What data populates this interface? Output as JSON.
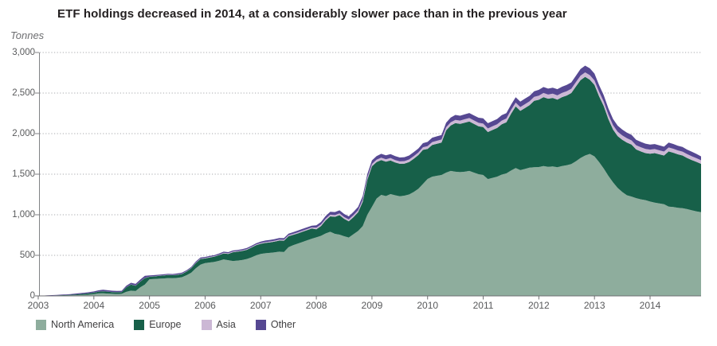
{
  "title": "ETF holdings decreased in 2014, at a considerably slower pace than in the previous year",
  "y_axis": {
    "unit": "Tonnes",
    "tick_labels": [
      "3,000",
      "2,500",
      "2,000",
      "1,500",
      "1,000",
      "500",
      "0"
    ],
    "tick_values": [
      3000,
      2500,
      2000,
      1500,
      1000,
      500,
      0
    ]
  },
  "x_axis": {
    "year_labels": [
      "2003",
      "2004",
      "2005",
      "2006",
      "2007",
      "2008",
      "2009",
      "2010",
      "2011",
      "2012",
      "2013",
      "2014"
    ]
  },
  "legend": {
    "items": [
      {
        "label": "North America",
        "color": "#8ead9d"
      },
      {
        "label": "Europe",
        "color": "#176049"
      },
      {
        "label": "Asia",
        "color": "#ccb8d5"
      },
      {
        "label": "Other",
        "color": "#564892"
      }
    ]
  },
  "colors": {
    "gridline": "#a7a9ac",
    "axis": "#808285",
    "baseline": "#6d6e71",
    "title_text": "#231f20",
    "axis_text": "#58595b"
  },
  "chart_data": {
    "type": "area",
    "stacked": true,
    "title": "ETF holdings decreased in 2014, at a considerably slower pace than in the previous year",
    "ylabel": "Tonnes",
    "ylim": [
      0,
      3000
    ],
    "yticks": [
      0,
      500,
      1000,
      1500,
      2000,
      2500,
      3000
    ],
    "x_start_year": 2003,
    "x_end_year": 2014,
    "frequency": "monthly",
    "grid": "dotted-horizontal",
    "legend_position": "bottom",
    "series": [
      {
        "name": "North America",
        "color": "#8ead9d",
        "values": [
          1,
          1,
          2,
          3,
          4,
          5,
          6,
          7,
          9,
          11,
          13,
          16,
          22,
          30,
          32,
          28,
          25,
          24,
          25,
          50,
          65,
          60,
          105,
          140,
          205,
          208,
          212,
          215,
          220,
          218,
          222,
          230,
          255,
          285,
          340,
          385,
          405,
          412,
          420,
          432,
          450,
          440,
          430,
          435,
          442,
          455,
          475,
          500,
          517,
          525,
          530,
          537,
          545,
          540,
          600,
          625,
          645,
          665,
          685,
          705,
          722,
          740,
          770,
          790,
          765,
          755,
          735,
          720,
          760,
          800,
          860,
          1000,
          1098,
          1200,
          1245,
          1230,
          1255,
          1240,
          1228,
          1235,
          1250,
          1280,
          1320,
          1380,
          1441,
          1470,
          1480,
          1490,
          1520,
          1540,
          1530,
          1525,
          1530,
          1540,
          1520,
          1500,
          1490,
          1440,
          1455,
          1470,
          1495,
          1510,
          1545,
          1575,
          1550,
          1565,
          1580,
          1585,
          1588,
          1600,
          1590,
          1595,
          1585,
          1600,
          1610,
          1625,
          1660,
          1700,
          1730,
          1750,
          1720,
          1650,
          1570,
          1480,
          1400,
          1330,
          1280,
          1240,
          1225,
          1205,
          1190,
          1180,
          1163,
          1150,
          1140,
          1130,
          1100,
          1095,
          1085,
          1080,
          1070,
          1055,
          1042,
          1032
        ]
      },
      {
        "name": "Europe",
        "color": "#176049",
        "values": [
          0,
          0,
          1,
          2,
          3,
          4,
          5,
          7,
          9,
          12,
          14,
          17,
          18,
          22,
          25,
          24,
          22,
          21,
          22,
          55,
          75,
          65,
          70,
          80,
          30,
          32,
          34,
          36,
          38,
          37,
          38,
          40,
          45,
          55,
          65,
          70,
          57,
          62,
          64,
          70,
          74,
          78,
          108,
          110,
          112,
          113,
          120,
          125,
          125,
          128,
          130,
          132,
          136,
          140,
          135,
          128,
          125,
          125,
          125,
          125,
          100,
          120,
          160,
          190,
          210,
          240,
          215,
          200,
          210,
          230,
          300,
          430,
          500,
          450,
          430,
          425,
          415,
          405,
          400,
          395,
          400,
          410,
          415,
          420,
          370,
          390,
          395,
          400,
          520,
          560,
          600,
          595,
          605,
          610,
          600,
          590,
          590,
          580,
          590,
          600,
          620,
          630,
          700,
          760,
          730,
          750,
          770,
          820,
          830,
          850,
          840,
          845,
          835,
          850,
          860,
          875,
          920,
          960,
          970,
          915,
          880,
          810,
          770,
          700,
          650,
          640,
          645,
          650,
          640,
          600,
          590,
          580,
          590,
          610,
          605,
          600,
          680,
          670,
          660,
          650,
          630,
          620,
          610,
          595
        ]
      },
      {
        "name": "Asia",
        "color": "#ccb8d5",
        "values": [
          0,
          0,
          0,
          0,
          0,
          0,
          0,
          0,
          0,
          0,
          0,
          1,
          1,
          1,
          1,
          1,
          1,
          1,
          1,
          2,
          2,
          2,
          2,
          2,
          3,
          3,
          3,
          3,
          3,
          3,
          4,
          4,
          4,
          4,
          5,
          5,
          6,
          6,
          6,
          6,
          7,
          7,
          8,
          8,
          8,
          8,
          8,
          8,
          10,
          10,
          11,
          11,
          12,
          12,
          12,
          12,
          13,
          13,
          14,
          14,
          18,
          19,
          20,
          21,
          21,
          22,
          22,
          22,
          24,
          25,
          26,
          28,
          28,
          28,
          28,
          29,
          30,
          30,
          30,
          31,
          31,
          32,
          32,
          32,
          35,
          36,
          37,
          37,
          38,
          40,
          40,
          41,
          42,
          42,
          43,
          43,
          44,
          44,
          45,
          45,
          46,
          46,
          46,
          47,
          47,
          48,
          48,
          49,
          50,
          51,
          51,
          52,
          52,
          52,
          53,
          53,
          54,
          55,
          55,
          56,
          56,
          56,
          55,
          55,
          54,
          54,
          53,
          53,
          52,
          52,
          52,
          51,
          50,
          50,
          49,
          49,
          49,
          49,
          48,
          48,
          47,
          46,
          45,
          45
        ]
      },
      {
        "name": "Other",
        "color": "#564892",
        "values": [
          2,
          3,
          4,
          5,
          6,
          7,
          8,
          9,
          10,
          11,
          12,
          13,
          14,
          16,
          18,
          17,
          16,
          15,
          15,
          18,
          20,
          21,
          24,
          25,
          14,
          13,
          12,
          12,
          12,
          12,
          12,
          12,
          13,
          13,
          14,
          14,
          12,
          13,
          13,
          14,
          14,
          14,
          14,
          14,
          14,
          15,
          15,
          15,
          18,
          19,
          19,
          20,
          20,
          20,
          21,
          20,
          22,
          22,
          22,
          22,
          30,
          32,
          34,
          36,
          37,
          38,
          38,
          38,
          40,
          42,
          44,
          45,
          45,
          46,
          48,
          48,
          48,
          48,
          48,
          49,
          49,
          50,
          50,
          50,
          52,
          54,
          55,
          55,
          56,
          58,
          60,
          60,
          61,
          62,
          62,
          63,
          64,
          64,
          65,
          65,
          66,
          66,
          66,
          67,
          67,
          68,
          68,
          69,
          72,
          74,
          74,
          75,
          76,
          76,
          77,
          78,
          80,
          82,
          83,
          84,
          84,
          82,
          80,
          78,
          76,
          74,
          72,
          70,
          68,
          67,
          66,
          65,
          62,
          62,
          61,
          60,
          60,
          59,
          58,
          57,
          56,
          55,
          53,
          48
        ]
      }
    ]
  }
}
